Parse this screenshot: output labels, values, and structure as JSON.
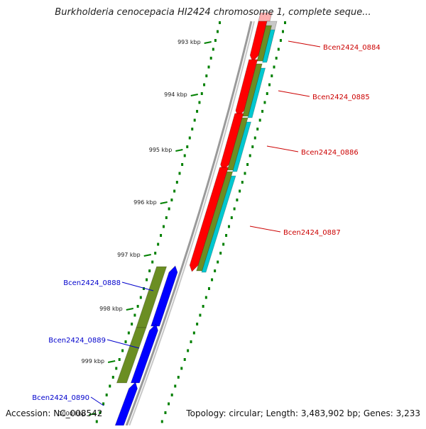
{
  "title": "Burkholderia cenocepacia HI2424 chromosome 1, complete seque...",
  "footer": {
    "accession": "Accession: NC_008542",
    "summary": "Topology: circular; Length: 3,483,902 bp; Genes: 3,233"
  },
  "ticks": [
    "993 kbp",
    "994 kbp",
    "995 kbp",
    "996 kbp",
    "997 kbp",
    "998 kbp",
    "999 kbp",
    "1000 kbp"
  ],
  "genes": [
    {
      "name": "Bcen2424_0884",
      "color": "#cc0000",
      "strand": "+"
    },
    {
      "name": "Bcen2424_0885",
      "color": "#cc0000",
      "strand": "+"
    },
    {
      "name": "Bcen2424_0886",
      "color": "#cc0000",
      "strand": "+"
    },
    {
      "name": "Bcen2424_0887",
      "color": "#cc0000",
      "strand": "+"
    },
    {
      "name": "Bcen2424_0888",
      "color": "#0000cc",
      "strand": "-"
    },
    {
      "name": "Bcen2424_0889",
      "color": "#0000cc",
      "strand": "-"
    },
    {
      "name": "Bcen2424_0890",
      "color": "#0000cc",
      "strand": "-"
    }
  ],
  "colors": {
    "cds_forward": "#ff0000",
    "cds_reverse": "#0000ff",
    "gene_feature": "#6b8e23",
    "highlight": "#00c8d0",
    "backbone": "#808080",
    "tick": "#008000"
  }
}
